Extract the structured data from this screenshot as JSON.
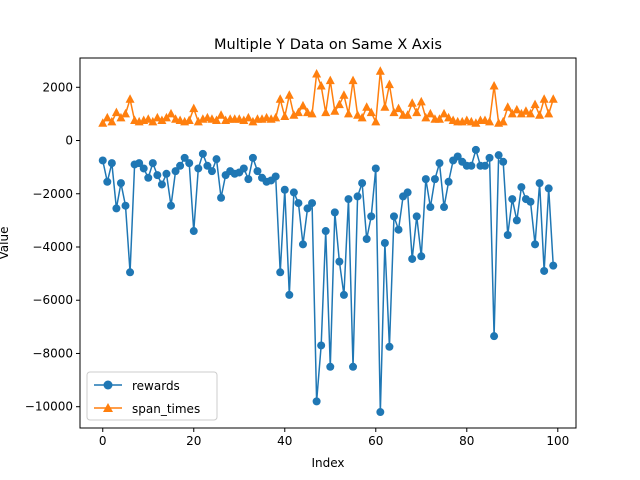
{
  "chart_data": {
    "type": "line",
    "title": "Multiple Y Data on Same X Axis",
    "xlabel": "Index",
    "ylabel": "Value",
    "xlim": [
      -5,
      104
    ],
    "ylim": [
      -10800,
      3100
    ],
    "xticks": [
      0,
      20,
      40,
      60,
      80,
      100
    ],
    "yticks": [
      -10000,
      -8000,
      -6000,
      -4000,
      -2000,
      0,
      2000
    ],
    "grid": false,
    "legend_position": "lower-left",
    "series": [
      {
        "name": "rewards",
        "marker": "circle",
        "color": "#1f77b4",
        "values": [
          -750,
          -1550,
          -850,
          -2550,
          -1600,
          -2450,
          -4950,
          -900,
          -850,
          -1050,
          -1400,
          -850,
          -1300,
          -1650,
          -1250,
          -2450,
          -1150,
          -950,
          -650,
          -850,
          -3400,
          -1050,
          -500,
          -950,
          -1150,
          -700,
          -2150,
          -1300,
          -1150,
          -1250,
          -1200,
          -1050,
          -1450,
          -650,
          -1150,
          -1400,
          -1550,
          -1500,
          -1350,
          -4950,
          -1850,
          -5800,
          -1950,
          -2350,
          -3900,
          -2550,
          -2350,
          -9800,
          -7700,
          -3400,
          -8500,
          -2700,
          -4550,
          -5800,
          -2200,
          -8500,
          -2100,
          -1600,
          -3700,
          -2850,
          -1050,
          -10200,
          -3850,
          -7750,
          -2850,
          -3350,
          -2100,
          -1950,
          -4450,
          -2850,
          -4350,
          -1450,
          -2500,
          -1450,
          -850,
          -2500,
          -1550,
          -750,
          -600,
          -800,
          -950,
          -950,
          -350,
          -950,
          -950,
          -650,
          -7350,
          -550,
          -800,
          -3550,
          -2200,
          -3000,
          -1750,
          -2200,
          -2300,
          -3900,
          -1600,
          -4900,
          -1800,
          -4700
        ]
      },
      {
        "name": "span_times",
        "marker": "triangle",
        "color": "#ff7f0e",
        "values": [
          650,
          850,
          700,
          1050,
          850,
          1000,
          1550,
          750,
          700,
          750,
          800,
          700,
          850,
          750,
          850,
          1000,
          800,
          750,
          700,
          750,
          1200,
          700,
          800,
          850,
          800,
          750,
          950,
          750,
          800,
          800,
          800,
          750,
          850,
          700,
          800,
          800,
          850,
          800,
          850,
          1550,
          900,
          1700,
          950,
          1050,
          1300,
          1050,
          1000,
          2500,
          2050,
          1050,
          2250,
          1100,
          1350,
          1700,
          1000,
          2250,
          950,
          850,
          1250,
          1050,
          700,
          2600,
          1250,
          2100,
          1050,
          1200,
          950,
          950,
          1400,
          1050,
          1450,
          850,
          1000,
          800,
          800,
          1000,
          850,
          750,
          700,
          700,
          750,
          700,
          650,
          750,
          750,
          700,
          2050,
          650,
          700,
          1250,
          1000,
          1150,
          1000,
          1100,
          1000,
          1350,
          950,
          1550,
          1000,
          1550
        ]
      }
    ]
  }
}
